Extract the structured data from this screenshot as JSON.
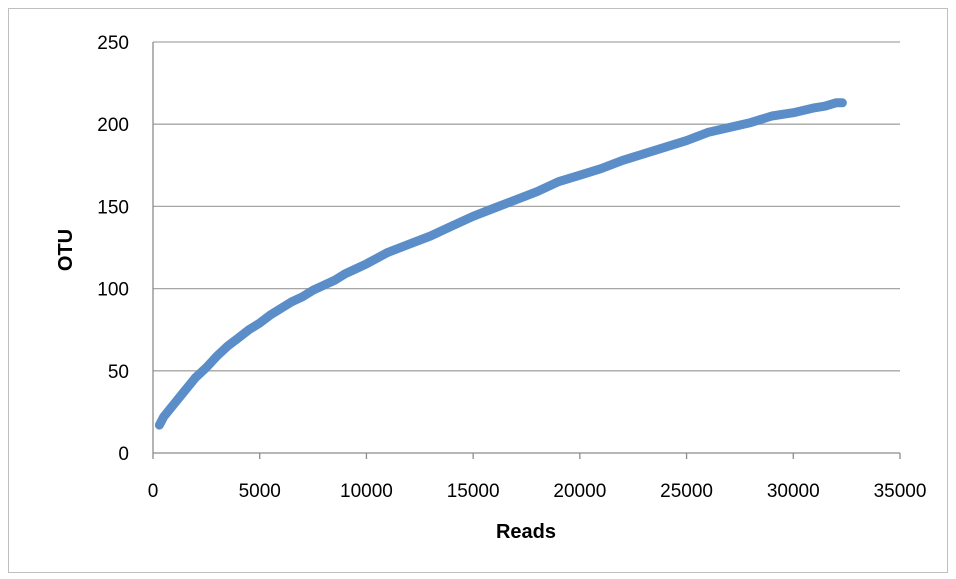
{
  "chart_data": {
    "type": "line",
    "title": "",
    "xlabel": "Reads",
    "ylabel": "OTU",
    "xlim": [
      0,
      35000
    ],
    "ylim": [
      0,
      250
    ],
    "xticks": [
      0,
      5000,
      10000,
      15000,
      20000,
      25000,
      30000,
      35000
    ],
    "yticks": [
      0,
      50,
      100,
      150,
      200,
      250
    ],
    "xtick_labels": [
      "0",
      "5000",
      "10000",
      "15000",
      "20000",
      "25000",
      "30000",
      "35000"
    ],
    "ytick_labels": [
      "0",
      "50",
      "100",
      "150",
      "200",
      "250"
    ],
    "grid": "horizontal",
    "legend": "none",
    "color": "#5b8ec9",
    "series": [
      {
        "x": [
          300,
          500,
          1000,
          1500,
          2000,
          2500,
          3000,
          3500,
          4000,
          4500,
          5000,
          5500,
          6000,
          6500,
          7000,
          7500,
          8000,
          8500,
          9000,
          9500,
          10000,
          11000,
          12000,
          13000,
          14000,
          15000,
          16000,
          17000,
          18000,
          19000,
          20000,
          21000,
          22000,
          23000,
          24000,
          25000,
          26000,
          27000,
          28000,
          29000,
          30000,
          31000,
          31500,
          32000,
          32300
        ],
        "y": [
          17,
          22,
          30,
          38,
          46,
          52,
          59,
          65,
          70,
          75,
          79,
          84,
          88,
          92,
          95,
          99,
          102,
          105,
          109,
          112,
          115,
          122,
          127,
          132,
          138,
          144,
          149,
          154,
          159,
          165,
          169,
          173,
          178,
          182,
          186,
          190,
          195,
          198,
          201,
          205,
          207,
          210,
          211,
          213,
          213
        ]
      }
    ]
  }
}
